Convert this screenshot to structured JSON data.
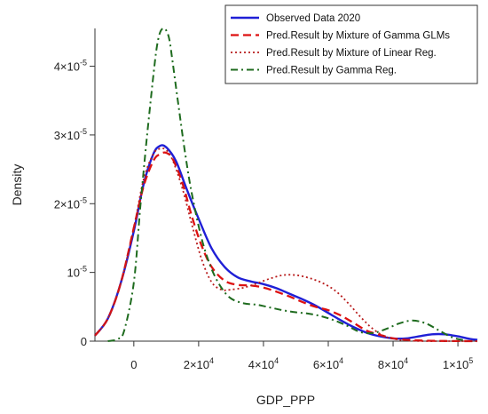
{
  "chart_data": {
    "type": "line",
    "xlabel": "GDP_PPP",
    "ylabel": "Density",
    "xlim": [
      -12000,
      106000
    ],
    "ylim": [
      0,
      4.55e-05
    ],
    "x_ticks": [
      {
        "value": 0,
        "base": "0",
        "exp": ""
      },
      {
        "value": 20000,
        "base": "2×10",
        "exp": "4"
      },
      {
        "value": 40000,
        "base": "4×10",
        "exp": "4"
      },
      {
        "value": 60000,
        "base": "6×10",
        "exp": "4"
      },
      {
        "value": 80000,
        "base": "8×10",
        "exp": "4"
      },
      {
        "value": 100000,
        "base": "1×10",
        "exp": "5"
      }
    ],
    "y_ticks": [
      {
        "value": 0,
        "base": "0",
        "exp": ""
      },
      {
        "value": 1e-05,
        "base": "10",
        "exp": "-5"
      },
      {
        "value": 2e-05,
        "base": "2×10",
        "exp": "-5"
      },
      {
        "value": 3e-05,
        "base": "3×10",
        "exp": "-5"
      },
      {
        "value": 4e-05,
        "base": "4×10",
        "exp": "-5"
      }
    ],
    "legend_position": "top-right",
    "series": [
      {
        "name": "Observed Data 2020",
        "color": "#1f1fd6",
        "dash": "solid",
        "x": [
          -12000,
          -8000,
          -4000,
          0,
          3000,
          6000,
          8000,
          10000,
          13000,
          16000,
          20000,
          24000,
          28000,
          32000,
          36000,
          40000,
          44000,
          48000,
          52000,
          56000,
          60000,
          64000,
          68000,
          72000,
          76000,
          80000,
          84000,
          88000,
          92000,
          96000,
          100000,
          104000,
          106000
        ],
        "y": [
          8e-07,
          3.3e-06,
          8.5e-06,
          1.6e-05,
          2.28e-05,
          2.72e-05,
          2.84e-05,
          2.82e-05,
          2.62e-05,
          2.25e-05,
          1.78e-05,
          1.35e-05,
          1.08e-05,
          9.3e-06,
          8.7e-06,
          8.3e-06,
          7.7e-06,
          6.9e-06,
          6.1e-06,
          5.2e-06,
          4.1e-06,
          3e-06,
          2e-06,
          1.2e-06,
          7e-07,
          4e-07,
          4e-07,
          7e-07,
          1e-06,
          1e-06,
          7e-07,
          3e-07,
          2e-07
        ]
      },
      {
        "name": "Pred.Result by Mixture of Gamma GLMs",
        "color": "#dd1111",
        "dash": "dashed",
        "x": [
          -12000,
          -8000,
          -4000,
          0,
          3000,
          6000,
          8000,
          10000,
          12000,
          15000,
          18000,
          21000,
          24000,
          28000,
          32000,
          36000,
          40000,
          44000,
          48000,
          52000,
          56000,
          60000,
          64000,
          68000,
          72000,
          76000,
          80000,
          84000,
          88000,
          92000,
          96000,
          100000,
          104000,
          106000
        ],
        "y": [
          8e-07,
          3.3e-06,
          8.5e-06,
          1.65e-05,
          2.25e-05,
          2.62e-05,
          2.72e-05,
          2.74e-05,
          2.65e-05,
          2.3e-05,
          1.8e-05,
          1.38e-05,
          1.08e-05,
          8.8e-06,
          8.2e-06,
          8.1e-06,
          7.8e-06,
          7.2e-06,
          6.5e-06,
          5.7e-06,
          5e-06,
          4.5e-06,
          3.7e-06,
          2.6e-06,
          1.5e-06,
          9e-07,
          4e-07,
          2e-07,
          1e-07,
          5e-08,
          2e-08,
          1e-08,
          0,
          0
        ]
      },
      {
        "name": "Pred.Result by Mixture of Linear Reg.",
        "color": "#b81c1c",
        "dash": "dotted",
        "x": [
          -12000,
          -8000,
          -4000,
          0,
          3000,
          6000,
          8000,
          10000,
          12000,
          15000,
          18000,
          21000,
          24000,
          27000,
          30000,
          34000,
          38000,
          42000,
          46000,
          50000,
          54000,
          58000,
          62000,
          66000,
          70000,
          74000,
          78000,
          82000,
          86000,
          90000,
          96000,
          106000
        ],
        "y": [
          8e-07,
          3.3e-06,
          8.5e-06,
          1.65e-05,
          2.35e-05,
          2.72e-05,
          2.8e-05,
          2.78e-05,
          2.63e-05,
          2.22e-05,
          1.68e-05,
          1.18e-05,
          8.6e-06,
          7.5e-06,
          7.5e-06,
          7.8e-06,
          8.4e-06,
          9.1e-06,
          9.6e-06,
          9.6e-06,
          9.2e-06,
          8.5e-06,
          7.4e-06,
          5.6e-06,
          3.5e-06,
          1.7e-06,
          6e-07,
          2e-07,
          5e-08,
          0,
          0,
          0
        ]
      },
      {
        "name": "Pred.Result by Gamma Reg.",
        "color": "#1e6b1e",
        "dash": "dashdot",
        "x": [
          -8000,
          -5000,
          -3000,
          0,
          2000,
          4000,
          6000,
          7000,
          8000,
          9000,
          10000,
          11000,
          12000,
          14000,
          16000,
          18000,
          21000,
          24000,
          27000,
          30000,
          34000,
          38000,
          42000,
          46000,
          50000,
          54000,
          58000,
          62000,
          66000,
          70000,
          74000,
          78000,
          82000,
          86000,
          90000,
          94000,
          98000,
          102000
        ],
        "y": [
          0,
          3e-07,
          1.5e-06,
          8.5e-06,
          1.95e-05,
          2.95e-05,
          3.85e-05,
          4.25e-05,
          4.48e-05,
          4.55e-05,
          4.52e-05,
          4.38e-05,
          4.05e-05,
          3.35e-05,
          2.68e-05,
          2.12e-05,
          1.48e-05,
          1.05e-05,
          7.8e-06,
          6.2e-06,
          5.5e-06,
          5.3e-06,
          4.9e-06,
          4.5e-06,
          4.2e-06,
          4e-06,
          3.6e-06,
          3e-06,
          2.2e-06,
          1.3e-06,
          1.2e-06,
          1.8e-06,
          2.6e-06,
          3e-06,
          2.6e-06,
          1.6e-06,
          6e-07,
          1e-07
        ]
      }
    ]
  }
}
